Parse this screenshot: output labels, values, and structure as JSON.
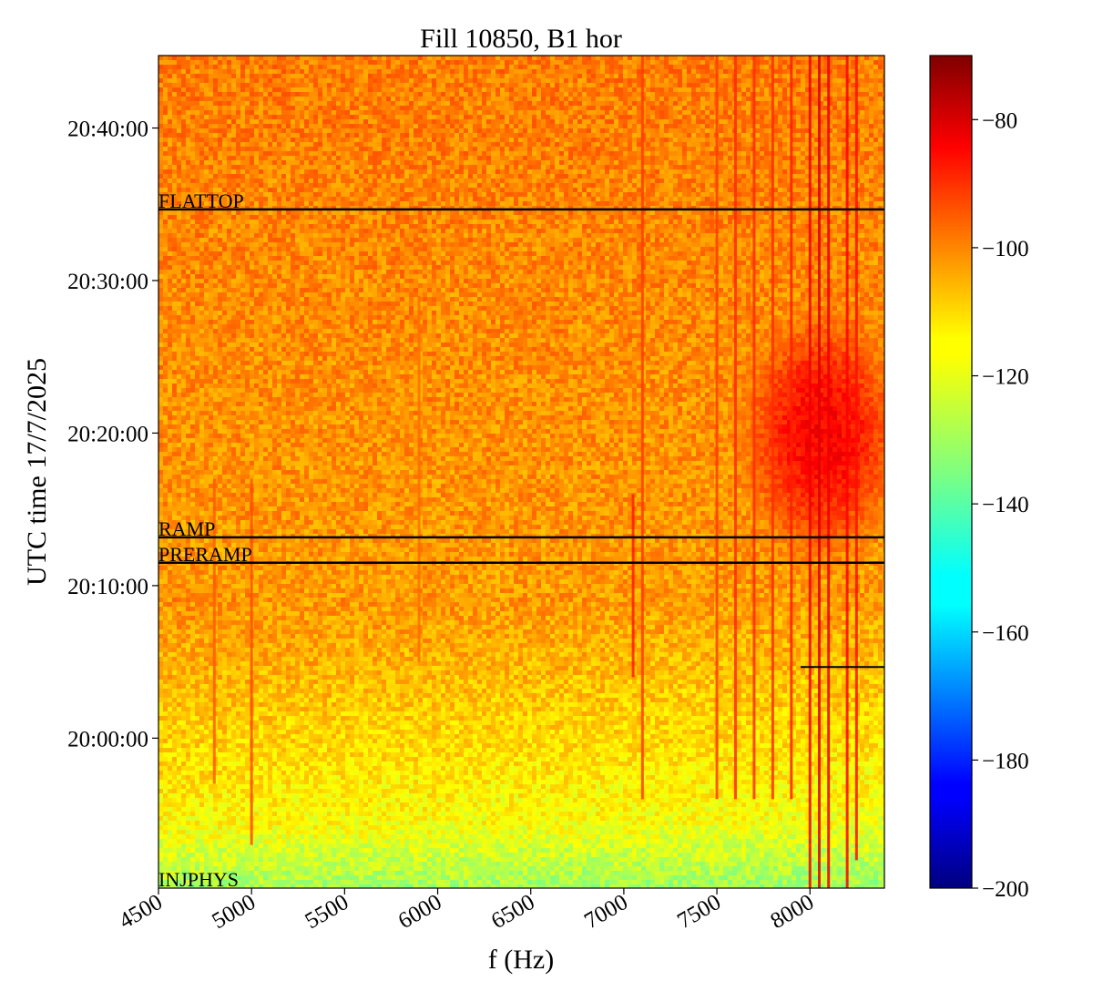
{
  "chart_data": {
    "type": "heatmap",
    "title": "Fill 10850, B1 hor",
    "xlabel": "f (Hz)",
    "ylabel": "UTC time 17/7/2025",
    "xlim": [
      4500,
      8400
    ],
    "x_ticks": [
      "4500",
      "5000",
      "5500",
      "6000",
      "6500",
      "7000",
      "7500",
      "8000"
    ],
    "x_tick_values": [
      4500,
      5000,
      5500,
      6000,
      6500,
      7000,
      7500,
      8000
    ],
    "y_ticks": [
      "20:00:00",
      "20:10:00",
      "20:20:00",
      "20:30:00",
      "20:40:00"
    ],
    "ylim": [
      "19:50:10",
      "20:44:45"
    ],
    "colorbar": {
      "colormap": "jet",
      "range": [
        -200,
        -70
      ],
      "ticks": [
        "−80",
        "−100",
        "−120",
        "−140",
        "−160",
        "−180",
        "−200"
      ],
      "tick_values": [
        -80,
        -100,
        -120,
        -140,
        -160,
        -180,
        -200
      ]
    },
    "annotations": [
      {
        "label": "FLATTOP",
        "time": "20:34:40"
      },
      {
        "label": "RAMP",
        "time": "20:13:10"
      },
      {
        "label": "PRERAMP",
        "time": "20:11:30"
      },
      {
        "label": "INJPHYS",
        "time": "19:50:10"
      }
    ],
    "extra_line": {
      "time": "20:04:40",
      "from_f": 7950
    },
    "spectral_lines": [
      {
        "f": 4800,
        "from": "19:57:00",
        "to": "20:17:00",
        "level": -98
      },
      {
        "f": 5000,
        "from": "19:53:00",
        "to": "20:17:00",
        "level": -96
      },
      {
        "f": 5900,
        "from": "20:05:00",
        "to": "20:29:00",
        "level": -100
      },
      {
        "f": 7050,
        "from": "20:04:00",
        "to": "20:16:00",
        "level": -90
      },
      {
        "f": 7100,
        "from": "19:56:00",
        "to": "20:44:45",
        "level": -94
      },
      {
        "f": 7500,
        "from": "19:56:00",
        "to": "20:44:45",
        "level": -94
      },
      {
        "f": 7600,
        "from": "19:56:00",
        "to": "20:44:45",
        "level": -92
      },
      {
        "f": 7700,
        "from": "19:56:00",
        "to": "20:44:45",
        "level": -92
      },
      {
        "f": 7800,
        "from": "19:56:00",
        "to": "20:44:45",
        "level": -92
      },
      {
        "f": 7900,
        "from": "19:56:00",
        "to": "20:44:45",
        "level": -90
      },
      {
        "f": 8000,
        "from": "19:50:10",
        "to": "20:44:45",
        "level": -84
      },
      {
        "f": 8050,
        "from": "19:50:10",
        "to": "20:44:45",
        "level": -82
      },
      {
        "f": 8100,
        "from": "19:50:10",
        "to": "20:44:45",
        "level": -84
      },
      {
        "f": 8200,
        "from": "19:50:10",
        "to": "20:44:45",
        "level": -86
      },
      {
        "f": 8250,
        "from": "19:52:00",
        "to": "20:44:45",
        "level": -88
      }
    ],
    "hot_spot": {
      "f": 8050,
      "time": "20:20:00",
      "level": -86
    }
  }
}
